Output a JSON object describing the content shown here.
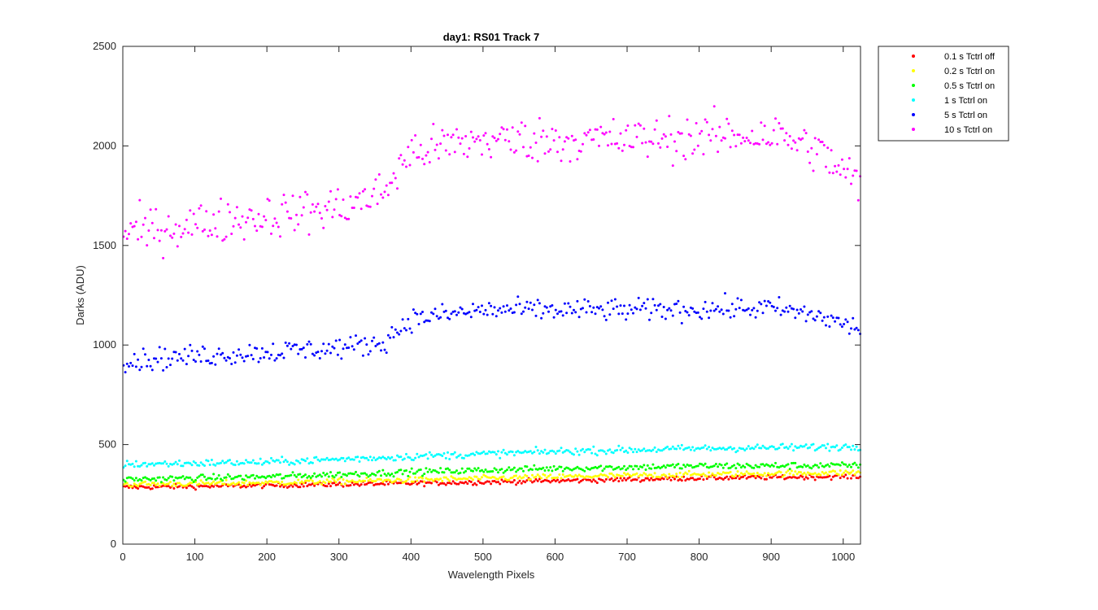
{
  "chart_data": {
    "type": "scatter",
    "title": "day1: RS01  Track 7",
    "xlabel": "Wavelength Pixels",
    "ylabel": "Darks (ADU)",
    "xlim": [
      0,
      1024
    ],
    "ylim": [
      0,
      2500
    ],
    "xticks": [
      0,
      100,
      200,
      300,
      400,
      500,
      600,
      700,
      800,
      900,
      1000
    ],
    "yticks": [
      0,
      500,
      1000,
      1500,
      2000,
      2500
    ],
    "grid": false,
    "legend_position": "outside-top-right",
    "x_sampling": {
      "start": 1,
      "end": 1024,
      "step": 5
    },
    "series": [
      {
        "name": "0.1 s Tctrl off",
        "color": "#ff0000",
        "trend": [
          [
            0,
            285
          ],
          [
            200,
            295
          ],
          [
            400,
            305
          ],
          [
            600,
            318
          ],
          [
            800,
            332
          ],
          [
            1024,
            340
          ]
        ],
        "spread": 12
      },
      {
        "name": "0.2 s Tctrl on",
        "color": "#ffff00",
        "trend": [
          [
            0,
            300
          ],
          [
            200,
            308
          ],
          [
            400,
            322
          ],
          [
            600,
            338
          ],
          [
            800,
            350
          ],
          [
            1024,
            360
          ]
        ],
        "spread": 14
      },
      {
        "name": "0.5 s Tctrl on",
        "color": "#00ff00",
        "trend": [
          [
            0,
            325
          ],
          [
            200,
            338
          ],
          [
            400,
            362
          ],
          [
            600,
            380
          ],
          [
            800,
            392
          ],
          [
            1024,
            395
          ]
        ],
        "spread": 16
      },
      {
        "name": "1 s Tctrl on",
        "color": "#00ffff",
        "trend": [
          [
            0,
            400
          ],
          [
            200,
            412
          ],
          [
            400,
            440
          ],
          [
            600,
            465
          ],
          [
            800,
            480
          ],
          [
            1024,
            490
          ]
        ],
        "spread": 18
      },
      {
        "name": "5 s Tctrl on",
        "color": "#0000ff",
        "trend": [
          [
            0,
            920
          ],
          [
            150,
            955
          ],
          [
            300,
            985
          ],
          [
            360,
            1010
          ],
          [
            400,
            1130
          ],
          [
            500,
            1175
          ],
          [
            700,
            1175
          ],
          [
            900,
            1185
          ],
          [
            960,
            1150
          ],
          [
            1024,
            1080
          ]
        ],
        "spread": 55
      },
      {
        "name": "10 s Tctrl on",
        "color": "#ff00ff",
        "trend": [
          [
            0,
            1560
          ],
          [
            150,
            1630
          ],
          [
            300,
            1690
          ],
          [
            360,
            1760
          ],
          [
            400,
            1970
          ],
          [
            500,
            2030
          ],
          [
            700,
            2030
          ],
          [
            900,
            2060
          ],
          [
            960,
            1990
          ],
          [
            1024,
            1800
          ]
        ],
        "spread": 110
      }
    ]
  }
}
